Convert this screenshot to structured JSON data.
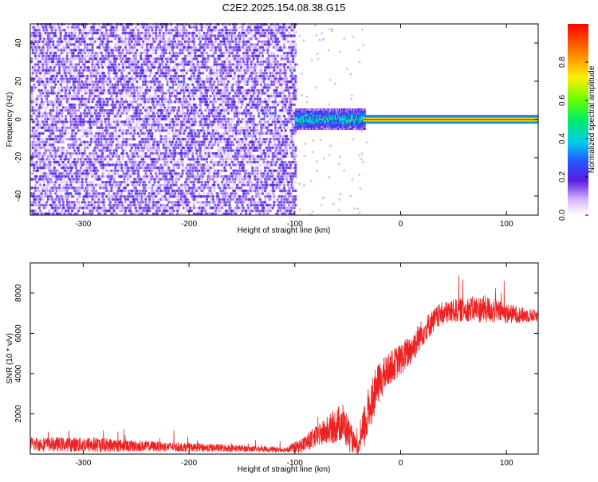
{
  "title": "C2E2.2025.154.08.38.G15",
  "colors": {
    "snr_line": "#ee2222",
    "colorbar_high": "#ff0000",
    "colorbar_low": "#ffffff"
  },
  "chart_data": [
    {
      "type": "heatmap",
      "xlabel": "Height of straight line (km)",
      "ylabel": "Frequency (Hz)",
      "xlim": [
        -350,
        130
      ],
      "ylim": [
        -50,
        50
      ],
      "xticks": [
        -300,
        -200,
        -100,
        0,
        100
      ],
      "yticks": [
        -40,
        -20,
        0,
        20,
        40
      ],
      "regions": [
        {
          "x_range": [
            -350,
            -100
          ],
          "freq_range": [
            -50,
            50
          ],
          "amplitude": 0.15
        },
        {
          "x_range": [
            -100,
            -35
          ],
          "freq_center": 0,
          "freq_halfwidth": 5,
          "amplitude": 0.4
        },
        {
          "x_range": [
            -35,
            130
          ],
          "freq_center": 0,
          "freq_halfwidth": 1.5,
          "amplitude": 1.0
        }
      ],
      "colorbar": {
        "label": "Normalized spectral amplitude",
        "ticks": [
          0.0,
          0.2,
          0.4,
          0.6,
          0.8
        ],
        "range": [
          0,
          1
        ]
      }
    },
    {
      "type": "line",
      "xlabel": "Height of straight line (km)",
      "ylabel": "SNR (10 * v/v)",
      "xlim": [
        -350,
        130
      ],
      "ylim": [
        0,
        9500
      ],
      "xticks": [
        -300,
        -200,
        -100,
        0,
        100
      ],
      "yticks": [
        2000,
        4000,
        6000,
        8000
      ],
      "series": [
        {
          "x": [
            -350,
            -320,
            -290,
            -260,
            -230,
            -200,
            -170,
            -140,
            -110,
            -95,
            -85,
            -75,
            -65,
            -55,
            -48,
            -40,
            -35,
            -28,
            -20,
            -10,
            0,
            10,
            20,
            30,
            40,
            60,
            80,
            100,
            115,
            130
          ],
          "y": [
            500,
            480,
            470,
            420,
            380,
            330,
            300,
            260,
            220,
            400,
            700,
            1000,
            1300,
            1600,
            900,
            200,
            1200,
            2600,
            3600,
            4300,
            4700,
            5200,
            6000,
            6600,
            7000,
            7200,
            7200,
            7000,
            6900,
            6900
          ],
          "noise": [
            350,
            350,
            400,
            300,
            250,
            220,
            200,
            150,
            120,
            350,
            500,
            600,
            800,
            1000,
            800,
            200,
            1200,
            1200,
            1000,
            800,
            800,
            800,
            700,
            600,
            600,
            600,
            700,
            500,
            400,
            300
          ]
        }
      ]
    }
  ]
}
